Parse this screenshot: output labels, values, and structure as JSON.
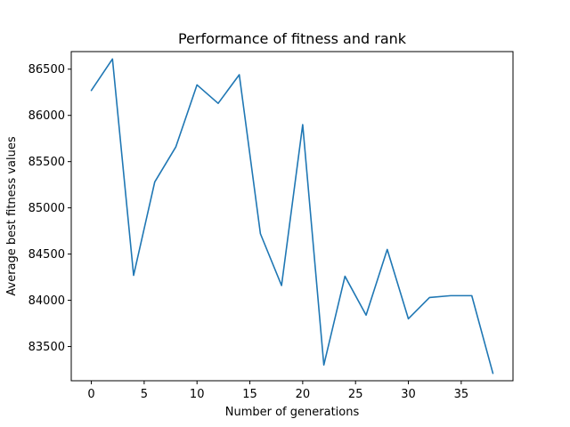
{
  "chart_data": {
    "type": "line",
    "title": "Performance of fitness and rank",
    "xlabel": "Number of generations",
    "ylabel": "Average best fitness values",
    "xlim": [
      -1.9,
      39.9
    ],
    "ylim": [
      83130,
      86690
    ],
    "xticks": [
      0,
      5,
      10,
      15,
      20,
      25,
      30,
      35
    ],
    "yticks": [
      83500,
      84000,
      84500,
      85000,
      85500,
      86000,
      86500
    ],
    "grid": false,
    "series": [
      {
        "color": "#1f77b4",
        "x": [
          0,
          2,
          4,
          6,
          8,
          10,
          12,
          14,
          16,
          18,
          20,
          22,
          24,
          26,
          28,
          30,
          32,
          34,
          36,
          38
        ],
        "y": [
          86270,
          86610,
          84270,
          85280,
          85660,
          86330,
          86130,
          86440,
          84720,
          84160,
          85900,
          83300,
          84260,
          83840,
          84550,
          83800,
          84030,
          84050,
          84050,
          83210
        ]
      }
    ]
  }
}
